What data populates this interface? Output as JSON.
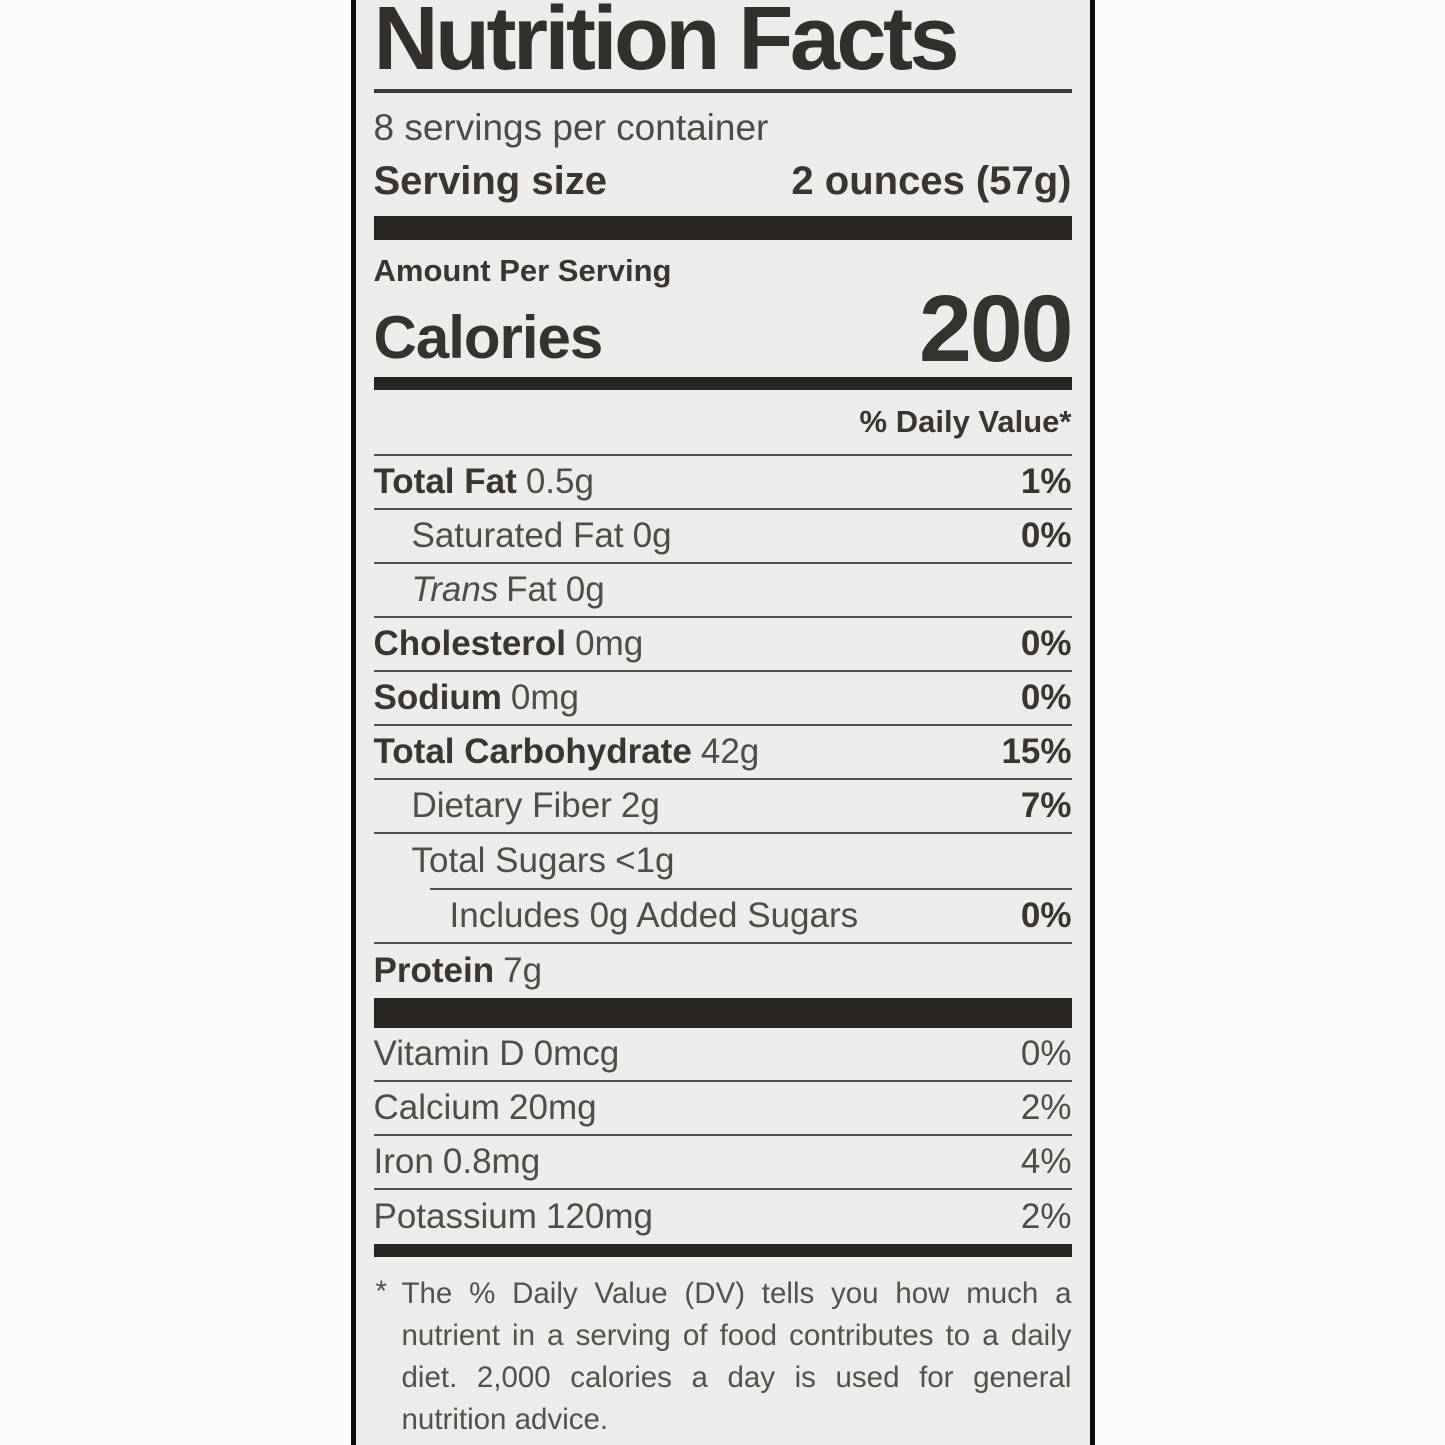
{
  "label": {
    "title": "Nutrition Facts",
    "servings_per_container": "8 servings per container",
    "serving_size": {
      "label": "Serving size",
      "value": "2 ounces (57g)"
    },
    "amount_per_serving": "Amount Per Serving",
    "calories": {
      "label": "Calories",
      "value": "200"
    },
    "daily_value_header": "% Daily Value*",
    "nutrients": [
      {
        "name": "Total Fat",
        "amount": "0.5g",
        "dv": "1%"
      },
      {
        "name": "Saturated Fat",
        "amount": "0g",
        "dv": "0%"
      },
      {
        "name_italic": "Trans",
        "name": "Fat",
        "amount": "0g",
        "dv": ""
      },
      {
        "name": "Cholesterol",
        "amount": "0mg",
        "dv": "0%"
      },
      {
        "name": "Sodium",
        "amount": "0mg",
        "dv": "0%"
      },
      {
        "name": "Total Carbohydrate",
        "amount": "42g",
        "dv": "15%"
      },
      {
        "name": "Dietary Fiber",
        "amount": "2g",
        "dv": "7%"
      },
      {
        "name": "Total Sugars",
        "amount": "<1g",
        "dv": ""
      },
      {
        "name": "Includes 0g Added Sugars",
        "amount": "",
        "dv": "0%"
      },
      {
        "name": "Protein",
        "amount": "7g",
        "dv": ""
      }
    ],
    "micronutrients": [
      {
        "name": "Vitamin D",
        "amount": "0mcg",
        "dv": "0%"
      },
      {
        "name": "Calcium",
        "amount": "20mg",
        "dv": "2%"
      },
      {
        "name": "Iron",
        "amount": "0.8mg",
        "dv": "4%"
      },
      {
        "name": "Potassium",
        "amount": "120mg",
        "dv": "2%"
      }
    ],
    "footnote": {
      "marker": "*",
      "text": "The % Daily Value (DV) tells you how much a nutrient in a serving of food contributes to a daily diet. 2,000 calories a day is used for general nutrition advice."
    }
  }
}
